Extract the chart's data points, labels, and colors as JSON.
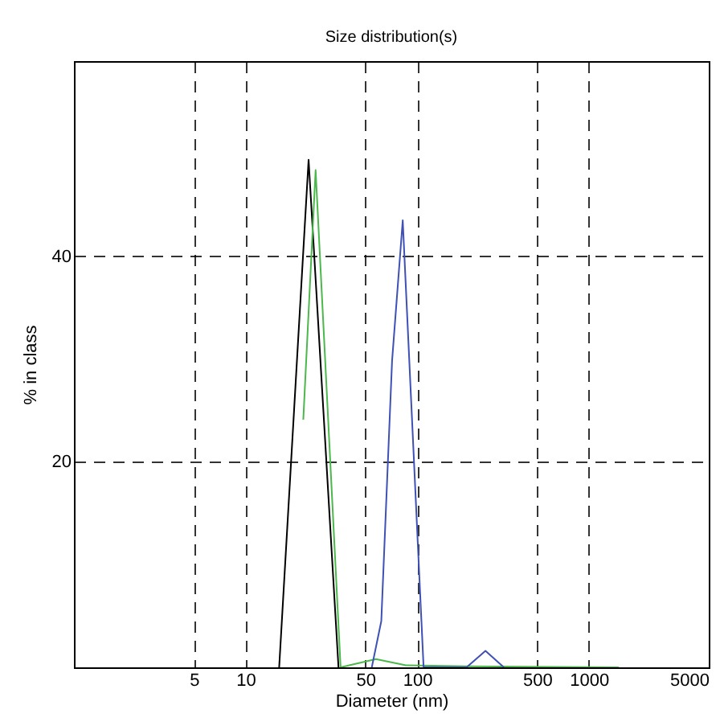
{
  "chart_data": {
    "type": "line",
    "title": "Size distribution(s)",
    "xlabel": "Diameter (nm)",
    "ylabel": "% in class",
    "log": "x",
    "xlim": [
      1,
      5000
    ],
    "xticks": [
      5,
      10,
      50,
      100,
      500,
      1000,
      5000
    ],
    "ylim": [
      0,
      59
    ],
    "yticks": [
      20,
      40
    ],
    "grid": true,
    "series": [
      {
        "color": "#000000",
        "x": [
          15.7,
          23.3,
          34.8
        ],
        "values": [
          0,
          49.4,
          0
        ]
      },
      {
        "color": "#4cb84c",
        "x": [
          21.7,
          25.6,
          35.8,
          57.5,
          86,
          200,
          1500
        ],
        "values": [
          24.1,
          48.4,
          0,
          0.8,
          0.2,
          0.1,
          0
        ]
      },
      {
        "color": "#3f51b5",
        "x": [
          54.4,
          61.8,
          71.4,
          82.4,
          109,
          194,
          250,
          320
        ],
        "values": [
          0,
          4.5,
          29.8,
          43.5,
          0,
          0,
          1.6,
          0
        ]
      }
    ]
  }
}
